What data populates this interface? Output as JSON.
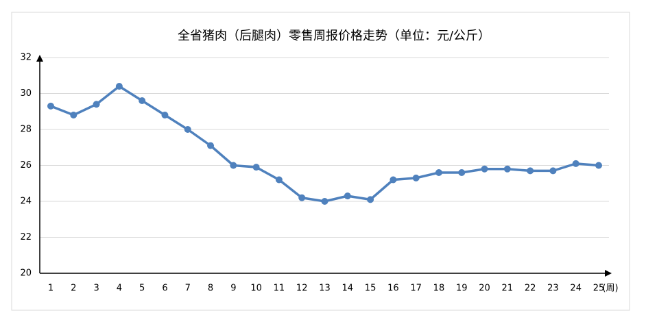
{
  "chart_data": {
    "type": "line",
    "title": "全省猪肉（后腿肉）零售周报价格走势（单位：元/公斤）",
    "x_label": "(周)",
    "categories": [
      "1",
      "2",
      "3",
      "4",
      "5",
      "6",
      "7",
      "8",
      "9",
      "10",
      "11",
      "12",
      "13",
      "14",
      "15",
      "16",
      "17",
      "18",
      "19",
      "20",
      "21",
      "22",
      "23",
      "24",
      "25"
    ],
    "series": [
      {
        "name": "价格",
        "color": "#4f81bd",
        "values": [
          29.3,
          28.8,
          29.4,
          30.4,
          29.6,
          28.8,
          28.0,
          27.1,
          26.0,
          25.9,
          25.2,
          24.2,
          24.0,
          24.3,
          24.1,
          25.2,
          25.3,
          25.6,
          25.6,
          25.8,
          25.8,
          25.7,
          25.7,
          26.1,
          26.0
        ]
      }
    ],
    "ylim": [
      20,
      32
    ],
    "yticks": [
      20,
      22,
      24,
      26,
      28,
      30,
      32
    ],
    "grid": true,
    "legend": false
  }
}
